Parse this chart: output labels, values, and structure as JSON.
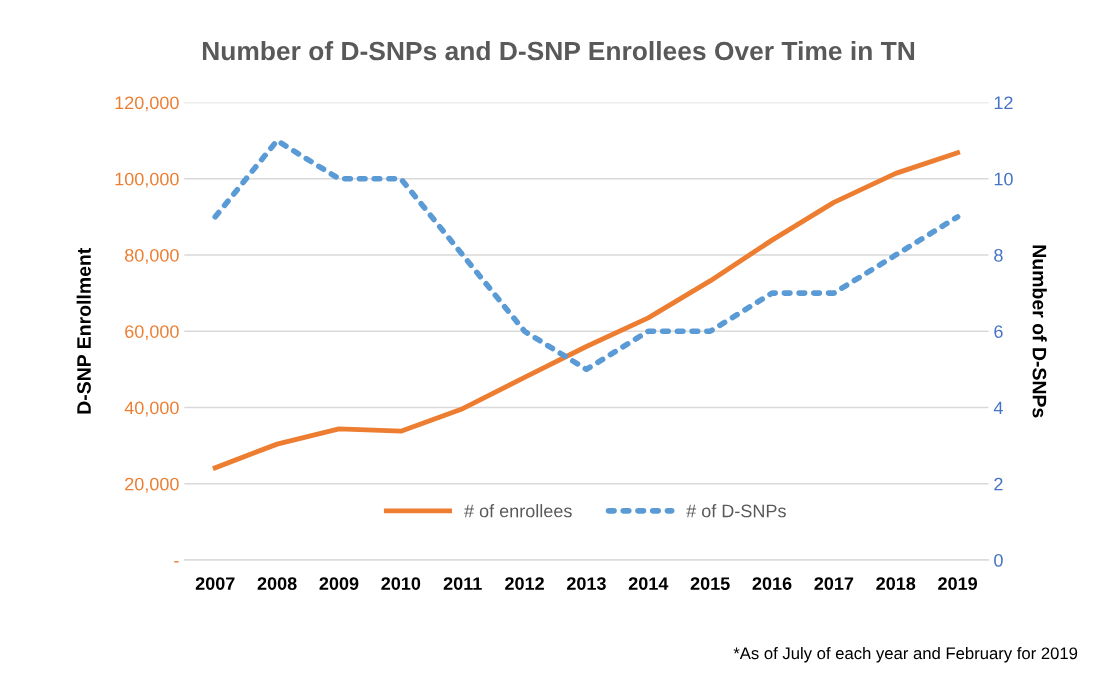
{
  "chart_data": {
    "type": "line",
    "title": "Number of D-SNPs and D-SNP Enrollees Over Time in TN",
    "categories": [
      "2007",
      "2008",
      "2009",
      "2010",
      "2011",
      "2012",
      "2013",
      "2014",
      "2015",
      "2016",
      "2017",
      "2018",
      "2019"
    ],
    "series": [
      {
        "name": "# of enrollees",
        "color": "#ed7d31",
        "line_style": "solid",
        "values": [
          24200,
          30400,
          34400,
          33800,
          39700,
          47900,
          56000,
          63500,
          73200,
          83900,
          93800,
          101400,
          106800
        ]
      },
      {
        "name": "# of D-SNPs",
        "color": "#5b9bd5",
        "line_style": "dotted",
        "axis": "y2",
        "values": [
          9,
          11,
          10,
          10,
          8,
          6,
          5,
          6,
          6,
          7,
          7,
          8,
          9
        ]
      }
    ],
    "ylabel": "D-SNP Enrollment",
    "y2label": "Number of D-SNPs",
    "ylim": [
      0,
      120000
    ],
    "yticks": [
      {
        "value": 0,
        "label": "-"
      },
      {
        "value": 20000,
        "label": "20,000"
      },
      {
        "value": 40000,
        "label": "40,000"
      },
      {
        "value": 60000,
        "label": "60,000"
      },
      {
        "value": 80000,
        "label": "80,000"
      },
      {
        "value": 100000,
        "label": "100,000"
      },
      {
        "value": 120000,
        "label": "120,000"
      }
    ],
    "y2lim": [
      0,
      12
    ],
    "y2ticks": [
      0,
      2,
      4,
      6,
      8,
      10,
      12
    ],
    "grid": "y",
    "legend": "bottom",
    "marker": "none",
    "annotations": [
      "*As of July of each year and February for 2019"
    ]
  }
}
